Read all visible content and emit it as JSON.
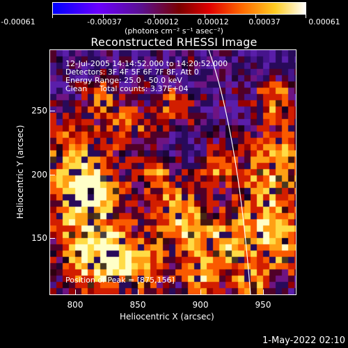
{
  "colorbar": {
    "ticks": [
      "-0.00061",
      "-0.00037",
      "-0.00012",
      "0.00012",
      "0.00037",
      "0.00061"
    ],
    "units": "(photons cm⁻² s⁻¹ asec⁻²)",
    "colors": [
      "#0000ff",
      "#7a00ff",
      "#7a00a0",
      "#a00000",
      "#ff2200",
      "#ff9900",
      "#ffff66",
      "#ffffff"
    ]
  },
  "plot": {
    "title": "Reconstructed RHESSI Image",
    "annotations": [
      "12-Jul-2005 14:14:52.000 to 14:20:52.000",
      "Detectors: 3F 4F 5F 6F 7F 8F, Att 0",
      "Energy Range: 25.0 - 50.0 keV",
      "Clean     Total counts: 3.37E+04"
    ],
    "peak_text": "Position of Peak = [875,156]",
    "xlabel": "Heliocentric X (arcsec)",
    "ylabel": "Heliocentric Y (arcsec)",
    "xticks": [
      "800",
      "850",
      "900",
      "950"
    ],
    "yticks": [
      "250",
      "200",
      "150"
    ]
  },
  "footer": {
    "timestamp": "1-May-2022 02:10"
  }
}
